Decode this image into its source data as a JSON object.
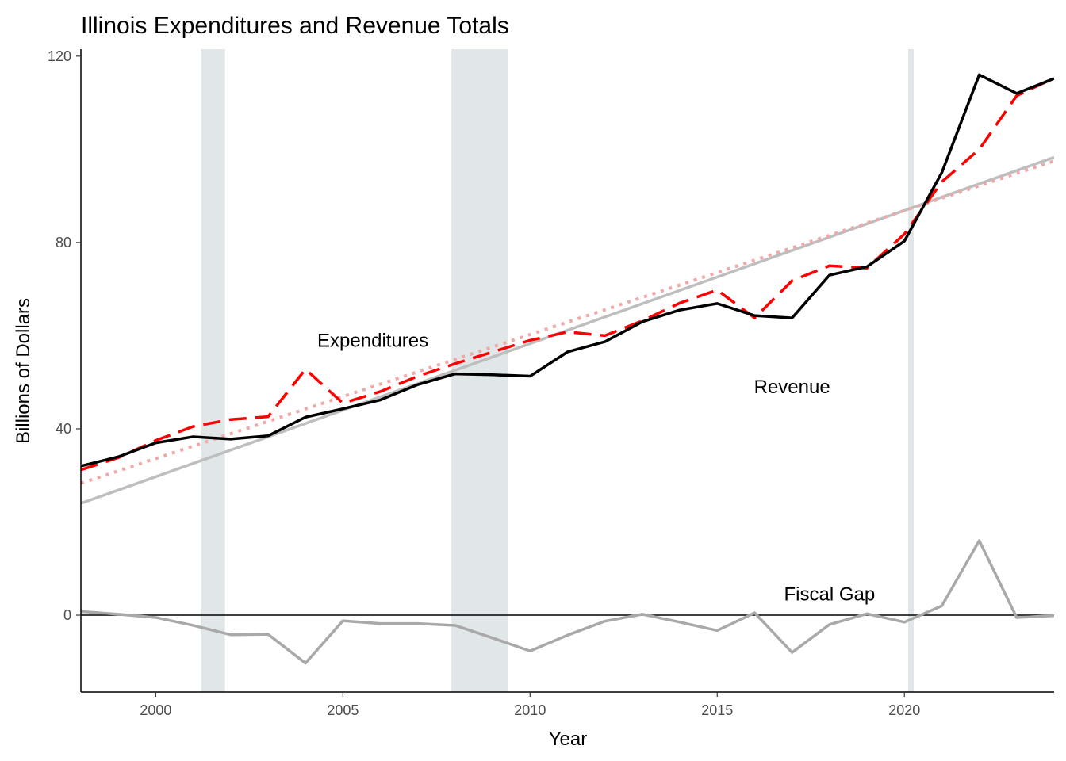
{
  "chart_data": {
    "type": "line",
    "title": "Illinois Expenditures and Revenue Totals",
    "xlabel": "Year",
    "ylabel": "Billions of Dollars",
    "xlim": [
      1998,
      2024
    ],
    "ylim": [
      -16.5,
      121.5
    ],
    "x_ticks": [
      2000,
      2005,
      2010,
      2015,
      2020
    ],
    "y_ticks": [
      0,
      40,
      80,
      120
    ],
    "grid": false,
    "legend": "none",
    "recession_bands": [
      {
        "start": 2001.2,
        "end": 2001.85
      },
      {
        "start": 2007.9,
        "end": 2009.4
      },
      {
        "start": 2020.1,
        "end": 2020.25
      }
    ],
    "x": [
      1998,
      1999,
      2000,
      2001,
      2002,
      2003,
      2004,
      2005,
      2006,
      2007,
      2008,
      2009,
      2010,
      2011,
      2012,
      2013,
      2014,
      2015,
      2016,
      2017,
      2018,
      2019,
      2020,
      2021,
      2022,
      2023,
      2024
    ],
    "series": [
      {
        "key": "revenue",
        "color": "#000000",
        "dash": "solid",
        "values": [
          32.0,
          34.0,
          37.0,
          38.3,
          37.8,
          38.5,
          42.5,
          44.3,
          46.2,
          49.5,
          51.8,
          51.6,
          51.3,
          56.5,
          58.7,
          63.0,
          65.5,
          66.9,
          64.3,
          63.8,
          73.0,
          74.8,
          80.3,
          95.0,
          116.0,
          112.0,
          115.2
        ]
      },
      {
        "key": "expenditures",
        "color": "#ff0000",
        "dash": "dashed",
        "values": [
          31.2,
          33.8,
          37.5,
          40.5,
          42.0,
          42.6,
          52.8,
          45.5,
          48.0,
          51.3,
          54.0,
          56.5,
          59.0,
          60.8,
          60.0,
          63.2,
          67.0,
          69.8,
          63.8,
          71.8,
          75.0,
          74.5,
          81.8,
          93.0,
          100.0,
          111.5,
          115.3
        ]
      },
      {
        "key": "revenue-trend",
        "color": "#bebebe",
        "dash": "solid",
        "values": [
          24.0,
          null,
          null,
          null,
          null,
          null,
          null,
          null,
          null,
          null,
          null,
          null,
          null,
          null,
          null,
          null,
          null,
          null,
          null,
          null,
          null,
          null,
          null,
          null,
          null,
          null,
          98.3
        ]
      },
      {
        "key": "expenditures-trend",
        "color": "#f0a8a8",
        "dash": "dotted",
        "values": [
          28.3,
          null,
          null,
          null,
          null,
          null,
          null,
          null,
          null,
          null,
          null,
          null,
          null,
          null,
          null,
          null,
          null,
          null,
          null,
          null,
          null,
          null,
          null,
          null,
          null,
          null,
          97.5
        ]
      },
      {
        "key": "fiscal-gap",
        "color": "#a9a9a9",
        "dash": "solid",
        "values": [
          0.8,
          0.2,
          -0.5,
          -2.2,
          -4.2,
          -4.1,
          -10.3,
          -1.2,
          -1.8,
          -1.8,
          -2.2,
          -4.9,
          -7.7,
          -4.3,
          -1.3,
          0.2,
          -1.5,
          -3.3,
          0.5,
          -8.0,
          -2.0,
          0.3,
          -1.5,
          2.0,
          16.0,
          -0.5,
          -0.1
        ]
      }
    ],
    "zero_line": true,
    "annotations": [
      {
        "text": "Expenditures",
        "x": 2005.8,
        "y": 59
      },
      {
        "text": "Revenue",
        "x": 2017.0,
        "y": 49
      },
      {
        "text": "Fiscal Gap",
        "x": 2018.0,
        "y": 4.5
      }
    ]
  }
}
